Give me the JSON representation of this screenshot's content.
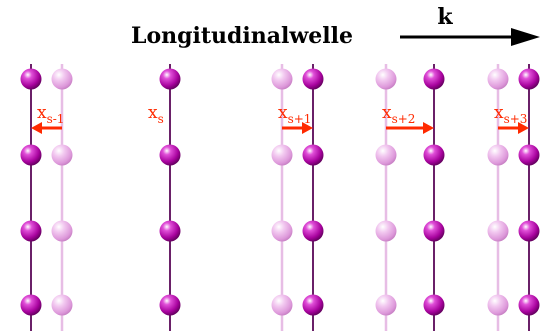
{
  "title": "Longitudinalwelle",
  "wave_vector_label": "k",
  "colors": {
    "atom_displaced": "#a8039e",
    "atom_equilibrium": "#e2a3e0",
    "line_displaced": "#6a2068",
    "line_equilibrium": "#e7bde5",
    "arrow": "#ff2a00",
    "label": "#ff2a00"
  },
  "planes": [
    {
      "label_base": "x",
      "label_sub": "s-1",
      "displacement": -1
    },
    {
      "label_base": "x",
      "label_sub": "s",
      "displacement": 0
    },
    {
      "label_base": "x",
      "label_sub": "s+1",
      "displacement": 1
    },
    {
      "label_base": "x",
      "label_sub": "s+2",
      "displacement": 2
    },
    {
      "label_base": "x",
      "label_sub": "s+3",
      "displacement": 1
    }
  ],
  "atoms_per_plane": 4
}
